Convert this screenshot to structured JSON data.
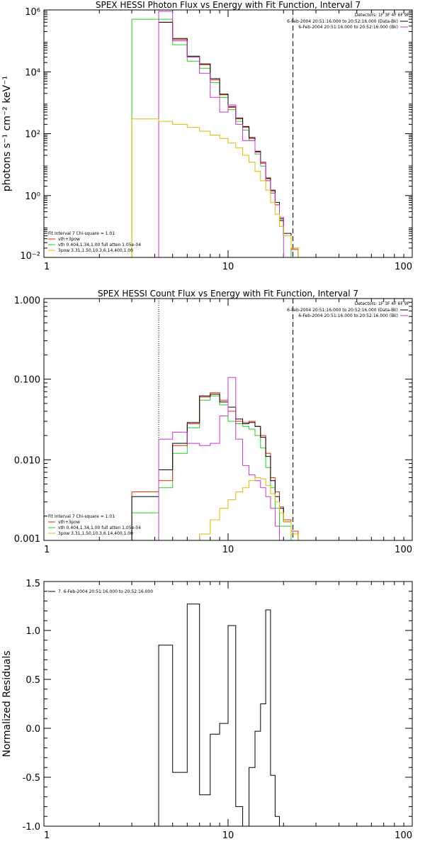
{
  "chart_data": [
    {
      "type": "line",
      "title": "SPEX HESSI Photon Flux vs Energy with Fit Function, Interval 7",
      "ylabel": "photons s⁻¹ cm⁻² keV⁻¹",
      "xlabel": "",
      "xscale": "log",
      "yscale": "log",
      "xlim": [
        1,
        100
      ],
      "ylim": [
        0.01,
        1000000
      ],
      "xticks": [
        "1",
        "10",
        "100"
      ],
      "yticks": [
        "10⁻²",
        "10⁰",
        "10²",
        "10⁴",
        "10⁶"
      ],
      "info": {
        "detectors": "Detectors: 1F 3F 4F 6F 9F",
        "legend_right": [
          {
            "label": "6-Feb-2004 20:51:16.000 to 20:52:16.000 (Data-Bk)",
            "color": "#000000"
          },
          {
            "label": "6-Feb-2004 20:51:16.000 to 20:52:16.000 (Bk)",
            "color": "#cc33cc"
          }
        ],
        "fit_header": "Fit Interval 7   Chi-square = 1.01",
        "legend_left": [
          {
            "label": "vth+3pow",
            "color": "#ee2200"
          },
          {
            "label": "vth 0.404,1.34,1.00  full atten 1.05e-04",
            "color": "#22cc22"
          },
          {
            "label": "3pow 3.31,1.50,10.3,6.14,400,1.00",
            "color": "#ddbb00"
          }
        ]
      },
      "vlines": [
        {
          "x": 4.2,
          "style": "dotted",
          "color": "#cc33cc"
        },
        {
          "x": 22.5,
          "style": "dashed",
          "color": "#000000"
        }
      ],
      "edges": [
        3,
        4.2,
        5,
        6,
        7,
        8,
        9,
        10,
        11,
        12,
        13,
        14,
        15,
        16,
        17,
        18,
        19,
        20,
        22,
        24,
        26
      ],
      "series": [
        {
          "color": "#22cc22",
          "values": [
            500000,
            500000,
            75000,
            22000,
            13000,
            4500,
            1500,
            600,
            250,
            130,
            60,
            22,
            9,
            3,
            1.2,
            0.5,
            0.15,
            0.05,
            null,
            null
          ]
        },
        {
          "color": "#ee2200",
          "values": [
            null,
            400000,
            110000,
            30000,
            17000,
            5500,
            1800,
            700,
            300,
            160,
            70,
            26,
            11,
            3.5,
            1.4,
            0.5,
            0.16,
            0.05,
            0.018,
            0.01
          ]
        },
        {
          "color": "#000000",
          "values": [
            null,
            400000,
            120000,
            32000,
            18000,
            6000,
            1900,
            750,
            320,
            170,
            75,
            27,
            12,
            3.7,
            1.5,
            0.6,
            0.18,
            0.06,
            0.02,
            0.01
          ]
        },
        {
          "color": "#cc33cc",
          "values": [
            null,
            900000,
            100000,
            30000,
            9000,
            1500,
            500,
            850,
            200,
            60,
            60,
            25,
            12,
            3,
            1.2,
            0.5,
            0.2,
            null,
            null,
            null
          ]
        },
        {
          "color": "#ddbb00",
          "values": [
            300,
            250,
            200,
            160,
            120,
            90,
            70,
            50,
            35,
            20,
            12,
            6,
            3,
            1.5,
            0.6,
            0.25,
            0.1,
            0.05,
            0.02,
            null
          ]
        }
      ]
    },
    {
      "type": "line",
      "title": "SPEX HESSI Count Flux vs Energy with Fit Function, Interval 7",
      "ylabel": "",
      "xlabel": "",
      "xscale": "log",
      "yscale": "log",
      "xlim": [
        1,
        100
      ],
      "ylim": [
        0.001,
        1.0
      ],
      "xticks": [
        "1",
        "10",
        "100"
      ],
      "yticks": [
        "0.001",
        "0.010",
        "0.100",
        "1.000"
      ],
      "info": {
        "detectors": "Detectors: 1F 3F 4F 6F 9F",
        "legend_right": [
          {
            "label": "6-Feb-2004 20:51:16.000 to 20:52:16.000 (Data-Bk)",
            "color": "#000000"
          },
          {
            "label": "6-Feb-2004 20:51:16.000 to 20:52:16.000 (Bk)",
            "color": "#cc33cc"
          }
        ],
        "fit_header": "Fit Interval 7   Chi-square = 1.01",
        "legend_left": [
          {
            "label": "vth+3pow",
            "color": "#ee2200"
          },
          {
            "label": "vth 0.404,1.34,1.00  full atten 1.05e-04",
            "color": "#22cc22"
          },
          {
            "label": "3pow 3.31,1.50,10.3,6.14,400,1.00",
            "color": "#ddbb00"
          }
        ]
      },
      "vlines": [
        {
          "x": 4.2,
          "style": "dotted",
          "color": "#000000"
        },
        {
          "x": 22.5,
          "style": "dashed",
          "color": "#000000"
        }
      ],
      "edges": [
        3,
        4.2,
        5,
        6,
        7,
        8,
        9,
        10,
        11,
        12,
        13,
        14,
        15,
        16,
        17,
        18,
        19,
        20,
        22,
        24,
        26
      ],
      "series": [
        {
          "color": "#22cc22",
          "values": [
            0.0022,
            0.0045,
            0.012,
            0.025,
            0.055,
            0.062,
            0.048,
            0.03,
            0.028,
            0.026,
            0.024,
            0.02,
            0.014,
            0.008,
            0.0045,
            0.0025,
            0.0015,
            0.0015,
            null,
            null
          ]
        },
        {
          "color": "#ee2200",
          "values": [
            0.004,
            0.0055,
            0.015,
            0.028,
            0.06,
            0.068,
            0.055,
            0.04,
            0.03,
            0.029,
            0.03,
            0.026,
            0.02,
            0.012,
            0.006,
            0.004,
            0.0026,
            0.0018,
            0.0013,
            null
          ]
        },
        {
          "color": "#000000",
          "values": [
            0.0035,
            0.0075,
            0.016,
            0.029,
            0.062,
            0.065,
            0.052,
            0.045,
            0.032,
            0.028,
            0.029,
            0.026,
            0.019,
            0.011,
            0.0055,
            0.0035,
            0.0025,
            0.0017,
            0.0012,
            null
          ]
        },
        {
          "color": "#cc33cc",
          "values": [
            null,
            0.018,
            0.022,
            0.016,
            0.015,
            0.016,
            0.035,
            0.105,
            0.018,
            0.0085,
            0.0065,
            0.0055,
            0.0045,
            0.0035,
            0.0025,
            0.0015,
            null,
            null,
            null,
            null
          ]
        },
        {
          "color": "#ddbb00",
          "values": [
            null,
            null,
            null,
            null,
            0.0012,
            0.0018,
            0.0025,
            0.0032,
            0.004,
            0.0045,
            0.0055,
            0.006,
            0.0058,
            0.0048,
            0.0038,
            0.003,
            0.0022,
            0.0017,
            0.0012,
            null
          ]
        }
      ]
    },
    {
      "type": "line",
      "title": "",
      "ylabel": "Normalized Residuals",
      "xlabel": "",
      "xscale": "log",
      "yscale": "linear",
      "xlim": [
        1,
        100
      ],
      "ylim": [
        -1.0,
        1.5
      ],
      "xticks": [
        "1",
        "10",
        "100"
      ],
      "yticks": [
        "-1.0",
        "-0.5",
        "0.0",
        "0.5",
        "1.0",
        "1.5"
      ],
      "info": {
        "legend_left": [
          {
            "label": "7.  6-Feb-2004 20:51:16.000 to 20:52:16.000",
            "color": "#000000"
          }
        ]
      },
      "edges": [
        4.2,
        5,
        6,
        7,
        8,
        9,
        10,
        11,
        12,
        13,
        14,
        15,
        16,
        17,
        18,
        19,
        20,
        22
      ],
      "series": [
        {
          "color": "#000000",
          "values": [
            0.85,
            -0.45,
            1.27,
            -0.68,
            -0.06,
            0.05,
            1.05,
            -0.8,
            -1.02,
            -0.4,
            -0.03,
            0.25,
            1.21,
            -0.48,
            -0.9,
            -1.02,
            -1.02
          ]
        }
      ]
    }
  ]
}
